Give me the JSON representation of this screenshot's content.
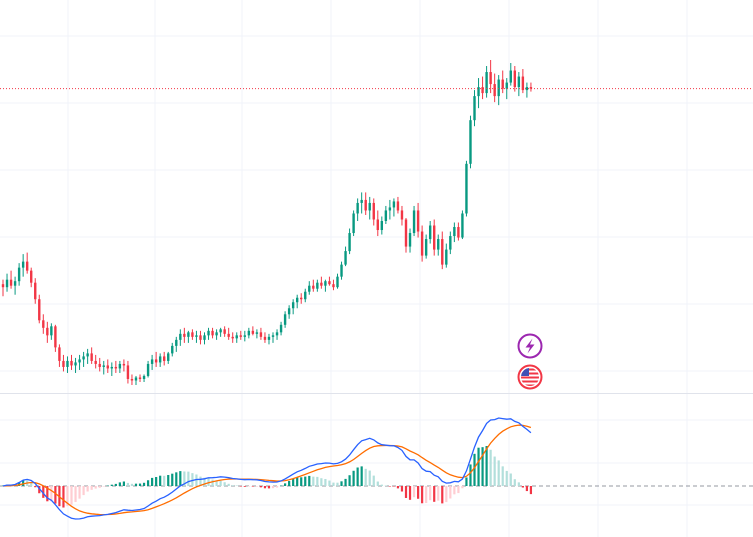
{
  "chart_data": [
    {
      "type": "candlestick",
      "panel": "price",
      "grid": true,
      "last_price_line": true,
      "colors": {
        "up": "#089981",
        "down": "#f23645",
        "last_price_line": "#f23645",
        "grid": "#f0f3fa"
      },
      "candles": [
        [
          313.0,
          316.0,
          305.0,
          311.0
        ],
        [
          311.0,
          320.0,
          308.0,
          316.0
        ],
        [
          316.0,
          322.0,
          310.0,
          312.0
        ],
        [
          312.0,
          318.0,
          306.0,
          315.0
        ],
        [
          315.0,
          327.0,
          312.0,
          324.0
        ],
        [
          324.0,
          333.0,
          318.0,
          328.0
        ],
        [
          328.0,
          334.0,
          320.0,
          322.0
        ],
        [
          322.0,
          324.0,
          311.0,
          314.0
        ],
        [
          314.0,
          317.0,
          300.0,
          303.0
        ],
        [
          303.0,
          306.0,
          287.0,
          289.0
        ],
        [
          289.0,
          293.0,
          280.0,
          284.0
        ],
        [
          284.0,
          288.0,
          274.0,
          279.0
        ],
        [
          279.0,
          287.0,
          276.0,
          285.0
        ],
        [
          285.0,
          286.0,
          268.0,
          271.0
        ],
        [
          271.0,
          273.0,
          258.0,
          262.0
        ],
        [
          262.0,
          266.0,
          255.0,
          258.0
        ],
        [
          258.0,
          265.0,
          254.0,
          262.0
        ],
        [
          262.0,
          266.0,
          256.0,
          259.0
        ],
        [
          259.0,
          264.0,
          254.0,
          261.0
        ],
        [
          261.0,
          266.0,
          256.0,
          263.0
        ],
        [
          263.0,
          268.0,
          258.0,
          265.0
        ],
        [
          265.0,
          270.0,
          260.0,
          267.0
        ],
        [
          267.0,
          271.0,
          260.0,
          262.0
        ],
        [
          262.0,
          266.0,
          257.0,
          260.0
        ],
        [
          260.0,
          264.0,
          255.0,
          258.0
        ],
        [
          258.0,
          262.0,
          253.0,
          259.0
        ],
        [
          259.0,
          263.0,
          254.0,
          257.0
        ],
        [
          257.0,
          261.0,
          252.0,
          258.0
        ],
        [
          258.0,
          262.0,
          254.0,
          257.0
        ],
        [
          257.0,
          262.0,
          254.0,
          260.0
        ],
        [
          260.0,
          263.0,
          255.0,
          259.0
        ],
        [
          259.0,
          262.0,
          247.0,
          250.0
        ],
        [
          250.0,
          253.0,
          246.0,
          249.0
        ],
        [
          249.0,
          252.0,
          246.0,
          251.0
        ],
        [
          251.0,
          253.0,
          248.0,
          250.0
        ],
        [
          250.0,
          253.0,
          248.0,
          252.0
        ],
        [
          252.0,
          262.0,
          251.0,
          260.0
        ],
        [
          260.0,
          266.0,
          256.0,
          263.0
        ],
        [
          263.0,
          268.0,
          258.0,
          261.0
        ],
        [
          261.0,
          267.0,
          258.0,
          265.0
        ],
        [
          265.0,
          268.0,
          259.0,
          262.0
        ],
        [
          262.0,
          268.0,
          260.0,
          267.0
        ],
        [
          267.0,
          274.0,
          265.0,
          272.0
        ],
        [
          272.0,
          278.0,
          268.0,
          276.0
        ],
        [
          276.0,
          283.0,
          272.0,
          280.0
        ],
        [
          280.0,
          284.0,
          274.0,
          278.0
        ],
        [
          278.0,
          282.0,
          274.0,
          281.0
        ],
        [
          281.0,
          283.0,
          276.0,
          278.0
        ],
        [
          278.0,
          282.0,
          274.0,
          279.0
        ],
        [
          279.0,
          282.0,
          273.0,
          276.0
        ],
        [
          276.0,
          281.0,
          273.0,
          279.0
        ],
        [
          279.0,
          284.0,
          276.0,
          282.0
        ],
        [
          282.0,
          284.0,
          277.0,
          279.0
        ],
        [
          279.0,
          283.0,
          276.0,
          281.0
        ],
        [
          281.0,
          284.0,
          278.0,
          283.0
        ],
        [
          283.0,
          285.0,
          278.0,
          280.0
        ],
        [
          280.0,
          284.0,
          276.0,
          278.0
        ],
        [
          278.0,
          281.0,
          274.0,
          277.0
        ],
        [
          277.0,
          281.0,
          274.0,
          279.0
        ],
        [
          279.0,
          282.0,
          276.0,
          278.0
        ],
        [
          278.0,
          282.0,
          275.0,
          279.0
        ],
        [
          279.0,
          284.0,
          277.0,
          282.0
        ],
        [
          282.0,
          285.0,
          279.0,
          280.0
        ],
        [
          280.0,
          283.0,
          277.0,
          281.0
        ],
        [
          281.0,
          284.0,
          276.0,
          278.0
        ],
        [
          278.0,
          281.0,
          274.0,
          276.0
        ],
        [
          276.0,
          280.0,
          273.0,
          278.0
        ],
        [
          278.0,
          281.0,
          274.0,
          279.0
        ],
        [
          279.0,
          283.0,
          276.0,
          281.0
        ],
        [
          281.0,
          288.0,
          279.0,
          286.0
        ],
        [
          286.0,
          295.0,
          284.0,
          293.0
        ],
        [
          293.0,
          299.0,
          290.0,
          297.0
        ],
        [
          297.0,
          303.0,
          293.0,
          301.0
        ],
        [
          301.0,
          306.0,
          297.0,
          304.0
        ],
        [
          304.0,
          307.0,
          300.0,
          303.0
        ],
        [
          303.0,
          310.0,
          301.0,
          308.0
        ],
        [
          308.0,
          315.0,
          306.0,
          312.0
        ],
        [
          312.0,
          316.0,
          308.0,
          310.0
        ],
        [
          310.0,
          316.0,
          308.0,
          314.0
        ],
        [
          314.0,
          318.0,
          310.0,
          312.0
        ],
        [
          312.0,
          316.0,
          308.0,
          315.0
        ],
        [
          315.0,
          318.0,
          312.0,
          313.0
        ],
        [
          313.0,
          316.0,
          309.0,
          311.0
        ],
        [
          311.0,
          320.0,
          310.0,
          318.0
        ],
        [
          318.0,
          328.0,
          316.0,
          326.0
        ],
        [
          326.0,
          338.0,
          325.0,
          335.0
        ],
        [
          335.0,
          350.0,
          333.0,
          347.0
        ],
        [
          347.0,
          362.0,
          345.0,
          360.0
        ],
        [
          360.0,
          370.0,
          355.0,
          367.0
        ],
        [
          367.0,
          374.0,
          360.0,
          369.0
        ],
        [
          369.0,
          374.0,
          359.0,
          362.0
        ],
        [
          362.0,
          371.0,
          356.0,
          367.0
        ],
        [
          367.0,
          370.0,
          352.0,
          356.0
        ],
        [
          356.0,
          362.0,
          345.0,
          349.0
        ],
        [
          349.0,
          358.0,
          346.0,
          355.0
        ],
        [
          355.0,
          365.0,
          353.0,
          362.0
        ],
        [
          362.0,
          369.0,
          356.0,
          364.0
        ],
        [
          364.0,
          370.0,
          358.0,
          368.0
        ],
        [
          368.0,
          371.0,
          360.0,
          362.0
        ],
        [
          362.0,
          365.0,
          352.0,
          356.0
        ],
        [
          356.0,
          357.0,
          334.0,
          338.0
        ],
        [
          338.0,
          350.0,
          334.0,
          347.0
        ],
        [
          347.0,
          365.0,
          345.0,
          362.0
        ],
        [
          362.0,
          367.0,
          344.0,
          348.0
        ],
        [
          348.0,
          352.0,
          328.0,
          332.0
        ],
        [
          332.0,
          346.0,
          330.0,
          343.0
        ],
        [
          343.0,
          355.0,
          340.0,
          352.0
        ],
        [
          352.0,
          356.0,
          332.0,
          336.0
        ],
        [
          336.0,
          346.0,
          332.0,
          343.0
        ],
        [
          343.0,
          348.0,
          323.0,
          326.0
        ],
        [
          326.0,
          340.0,
          324.0,
          336.0
        ],
        [
          336.0,
          348.0,
          333.0,
          345.0
        ],
        [
          345.0,
          354.0,
          341.0,
          351.0
        ],
        [
          351.0,
          354.0,
          342.0,
          344.0
        ],
        [
          344.0,
          362.0,
          343.0,
          360.0
        ],
        [
          360.0,
          395.0,
          358.0,
          393.0
        ],
        [
          393.0,
          425.0,
          390.0,
          422.0
        ],
        [
          422.0,
          442.0,
          418.0,
          438.0
        ],
        [
          438.0,
          450.0,
          430.0,
          444.0
        ],
        [
          444.0,
          451.0,
          436.0,
          440.0
        ],
        [
          440.0,
          458.0,
          437.0,
          454.0
        ],
        [
          454.0,
          462.0,
          440.0,
          446.0
        ],
        [
          446.0,
          453.0,
          434.0,
          438.0
        ],
        [
          438.0,
          452.0,
          432.0,
          449.0
        ],
        [
          449.0,
          455.0,
          440.0,
          443.0
        ],
        [
          443.0,
          450.0,
          436.0,
          447.0
        ],
        [
          447.0,
          460.0,
          445.0,
          455.0
        ],
        [
          455.0,
          458.0,
          441.0,
          444.0
        ],
        [
          444.0,
          454.0,
          438.0,
          451.0
        ],
        [
          451.0,
          456.0,
          440.0,
          442.0
        ],
        [
          442.0,
          447.0,
          437.0,
          444.0
        ],
        [
          444.0,
          447.0,
          441.0,
          443.0
        ]
      ]
    },
    {
      "type": "line",
      "panel": "macd",
      "indicator": "MACD",
      "zero_line": true,
      "series": [
        {
          "role": "macd",
          "color": "#2962ff"
        },
        {
          "role": "signal",
          "color": "#ff6d00"
        },
        {
          "role": "histogram",
          "colors": {
            "up_strong": "#089981",
            "up_weak": "#b2dfdb",
            "down_strong": "#f23645",
            "down_weak": "#ffcdd2"
          }
        }
      ]
    }
  ],
  "badges": [
    {
      "name": "event-flash-icon",
      "color": "#9c27b0"
    },
    {
      "name": "us-flag-icon",
      "color": "#f23645"
    }
  ]
}
